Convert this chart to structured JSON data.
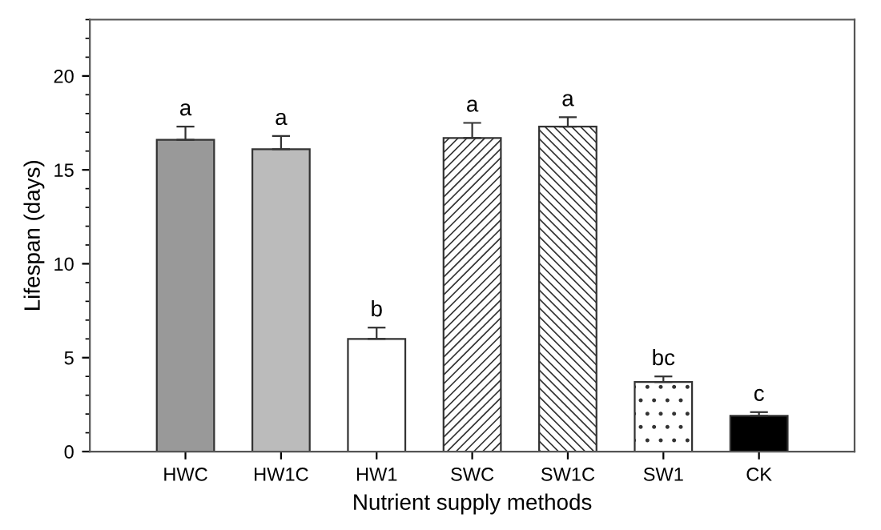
{
  "chart_data": {
    "type": "bar",
    "xlabel": "Nutrient supply methods",
    "ylabel": "Lifespan (days)",
    "categories": [
      "HWC",
      "HW1C",
      "HW1",
      "SWC",
      "SW1C",
      "SW1",
      "CK"
    ],
    "values": [
      16.6,
      16.1,
      6.0,
      16.7,
      17.3,
      3.7,
      1.9
    ],
    "errors": [
      [
        16.6,
        17.3
      ],
      [
        16.1,
        16.8
      ],
      [
        6.0,
        6.6
      ],
      [
        16.7,
        17.5
      ],
      [
        17.3,
        17.8
      ],
      [
        3.7,
        4.0
      ],
      [
        1.9,
        2.1
      ]
    ],
    "colors": [
      "#999999",
      "#bbbbbb",
      "#ffffff",
      "#333333",
      "#333333",
      "#333333",
      "#000000"
    ],
    "ylim": [
      0,
      23
    ],
    "yticks": [
      0,
      5,
      10,
      15,
      20
    ],
    "grid": false,
    "legend": false,
    "annotations": [
      {
        "text": "a",
        "x": "HWC",
        "y": 17.3
      },
      {
        "text": "a",
        "x": "HW1C",
        "y": 16.8
      },
      {
        "text": "b",
        "x": "HW1",
        "y": 6.6
      },
      {
        "text": "a",
        "x": "SWC",
        "y": 17.5
      },
      {
        "text": "a",
        "x": "SW1C",
        "y": 17.8
      },
      {
        "text": "bc",
        "x": "SW1",
        "y": 4.0
      },
      {
        "text": "c",
        "x": "CK",
        "y": 2.1
      }
    ]
  }
}
